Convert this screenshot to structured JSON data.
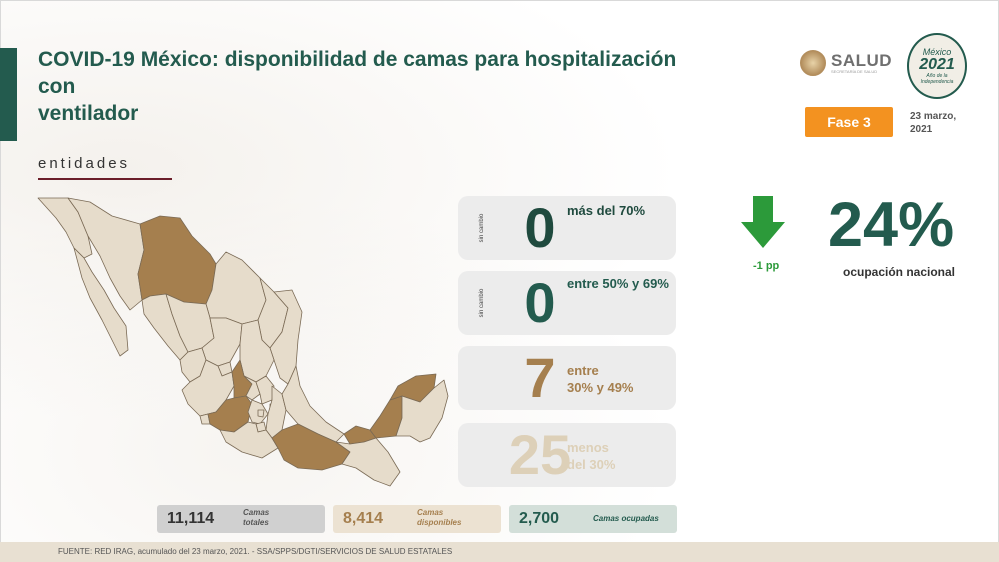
{
  "header": {
    "title_line1": "COVID-19 México: disponibilidad de camas para hospitalización con",
    "title_line2": "ventilador",
    "section_label": "entidades",
    "logo_text": "SALUD",
    "logo_subtext": "SECRETARÍA DE SALUD",
    "year_logo": {
      "line1": "México",
      "line2": "2021",
      "line3": "Año de la Independencia"
    },
    "phase_badge": "Fase 3",
    "date_line1": "23 marzo,",
    "date_line2": "2021"
  },
  "categories": [
    {
      "side_label": "sin cambio",
      "count": "0",
      "label_line1": "más del 70%",
      "label_line2": "",
      "color": "#1f4a3e"
    },
    {
      "side_label": "sin cambio",
      "count": "0",
      "label_line1": "entre 50% y 69%",
      "label_line2": "",
      "color": "#235b4e"
    },
    {
      "side_label": "",
      "count": "7",
      "label_line1": "entre",
      "label_line2": "30% y 49%",
      "color": "#a57f4e"
    },
    {
      "side_label": "",
      "count": "25",
      "label_line1": "menos",
      "label_line2": "del 30%",
      "color": "#ddd0b8"
    }
  ],
  "national": {
    "change": "-1 pp",
    "trend": "down",
    "arrow_color": "#2c9a3a",
    "occupancy": "24%",
    "occupancy_label": "ocupación nacional"
  },
  "beds": {
    "total_value": "11,114",
    "total_label_line1": "Camas",
    "total_label_line2": "totales",
    "available_value": "8,414",
    "available_label_line1": "Camas",
    "available_label_line2": "disponibles",
    "occupied_value": "2,700",
    "occupied_label": "Camas ocupadas"
  },
  "map": {
    "fill_light": "#e6dccb",
    "fill_highlight": "#a57f4e",
    "border": "#7a6a55"
  },
  "footer": {
    "source": "FUENTE: RED IRAG, acumulado del 23 marzo, 2021. -  SSA/SPPS/DGTI/SERVICIOS DE SALUD ESTATALES"
  }
}
